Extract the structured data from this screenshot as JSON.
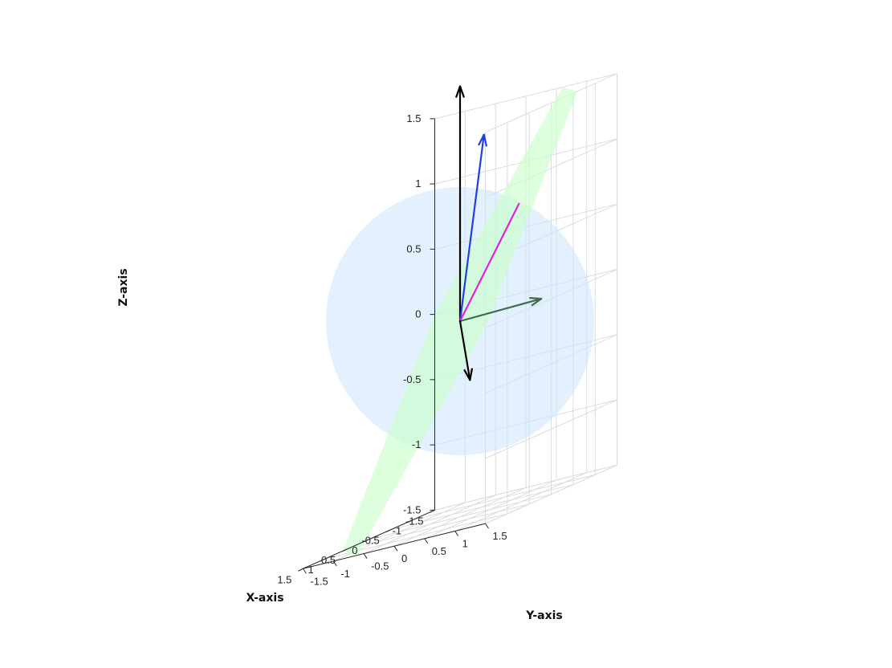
{
  "chart_data": {
    "type": "3d-vector-plot",
    "xlabel": "X-axis",
    "ylabel": "Y-axis",
    "zlabel": "Z-axis",
    "xlim": [
      -1.5,
      1.5
    ],
    "ylim": [
      -1.5,
      1.5
    ],
    "zlim": [
      -1.5,
      1.5
    ],
    "x_ticks": [
      "-1.5",
      "-1",
      "-0.5",
      "0",
      "0.5",
      "1",
      "1.5"
    ],
    "y_ticks": [
      "-1.5",
      "-1",
      "-0.5",
      "0",
      "0.5",
      "1",
      "1.5"
    ],
    "z_ticks": [
      "-1.5",
      "-1",
      "-0.5",
      "0",
      "0.5",
      "1",
      "1.5"
    ],
    "grid": true,
    "sphere": {
      "center": [
        0,
        0,
        0
      ],
      "radius": 1,
      "color": "#cce6ff",
      "opacity": 0.55
    },
    "plane": {
      "normal": [
        0.5,
        -0.5,
        0.7
      ],
      "color": "#ccffcc",
      "opacity": 0.65
    },
    "vectors": [
      {
        "from": [
          0,
          0,
          0
        ],
        "to": [
          0,
          0,
          1.8
        ],
        "color": "#000000",
        "arrow": true
      },
      {
        "from": [
          0,
          0,
          0
        ],
        "to": [
          -0.06,
          0.35,
          1.38
        ],
        "color": "#1f3fe0",
        "arrow": true
      },
      {
        "from": [
          0,
          0,
          0
        ],
        "to": [
          -0.58,
          0.55,
          0.75
        ],
        "color": "#dd22dd",
        "arrow": false
      },
      {
        "from": [
          0,
          0,
          0
        ],
        "to": [
          -1.02,
          0.6,
          -0.05
        ],
        "color": "#3f6b4a",
        "arrow": true
      },
      {
        "from": [
          0,
          0,
          0
        ],
        "to": [
          0.3,
          0.38,
          -0.45
        ],
        "color": "#000000",
        "arrow": true
      }
    ]
  }
}
